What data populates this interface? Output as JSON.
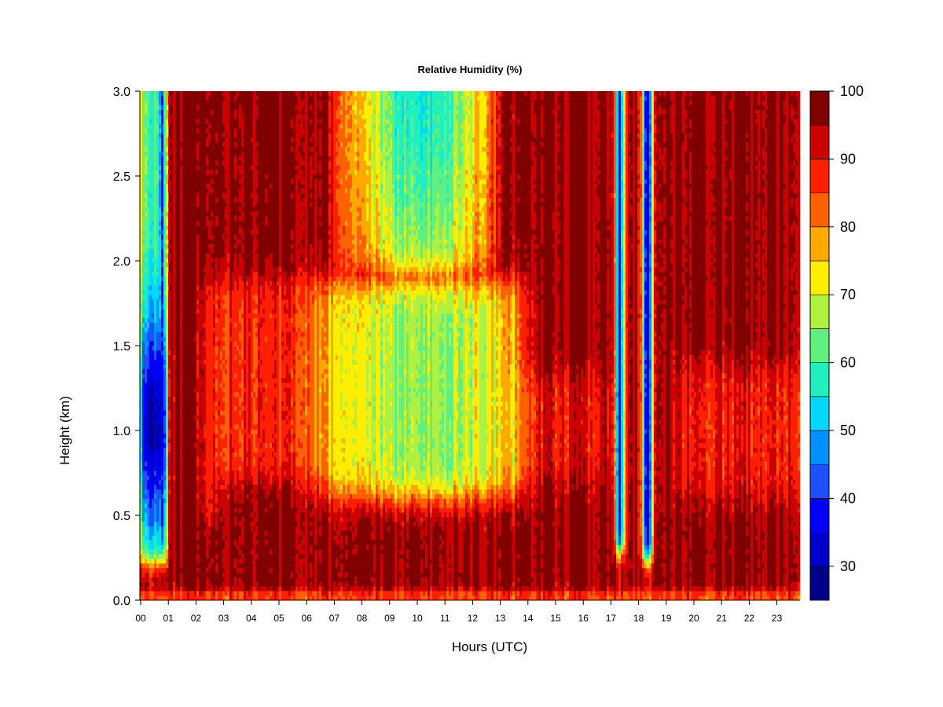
{
  "chart_data": {
    "type": "heatmap",
    "title": "Relative Humidity (%)",
    "xlabel": "Hours (UTC)",
    "ylabel": "Height (km)",
    "x_tick_labels": [
      "00",
      "01",
      "02",
      "03",
      "04",
      "05",
      "06",
      "07",
      "08",
      "09",
      "10",
      "11",
      "12",
      "13",
      "14",
      "15",
      "16",
      "17",
      "18",
      "19",
      "20",
      "21",
      "22",
      "23"
    ],
    "y_tick_labels": [
      "0.0",
      "0.5",
      "1.0",
      "1.5",
      "2.0",
      "2.5",
      "3.0"
    ],
    "xlim": [
      0,
      24
    ],
    "ylim": [
      0,
      3.0
    ],
    "colorbar": {
      "tick_labels": [
        "30",
        "40",
        "50",
        "60",
        "70",
        "80",
        "90",
        "100"
      ],
      "range": [
        25,
        100
      ],
      "levels": [
        25,
        30,
        35,
        40,
        45,
        50,
        55,
        60,
        65,
        70,
        75,
        80,
        85,
        90,
        95,
        100
      ],
      "colors": [
        "#00008b",
        "#0000cd",
        "#0000ff",
        "#1e50ff",
        "#0090ff",
        "#00d8ff",
        "#20f0c0",
        "#60f080",
        "#b0f040",
        "#ffee00",
        "#ffa800",
        "#ff6000",
        "#ff2000",
        "#cc0000",
        "#800000"
      ]
    },
    "features": [
      {
        "hour_start": 0.0,
        "hour_end": 1.0,
        "height_start": 0.2,
        "height_end": 3.0,
        "description": "dry band, min ~30% near 1.0-1.2 km at 00-01"
      },
      {
        "hour_start": 2.0,
        "hour_end": 3.0,
        "height_start": 0.5,
        "height_end": 1.9,
        "description": "90-95% band"
      },
      {
        "hour_start": 3.0,
        "hour_end": 6.5,
        "height_start": 0.7,
        "height_end": 1.9,
        "description": "85-95% layer"
      },
      {
        "hour_start": 6.5,
        "hour_end": 14.0,
        "height_start": 0.6,
        "height_end": 3.0,
        "description": "70-90% layer, min ~55-60% near 3.0 km at 10-11"
      },
      {
        "hour_start": 14.0,
        "hour_end": 17.0,
        "height_start": 0.7,
        "height_end": 1.3,
        "description": "90-95% layer"
      },
      {
        "hour_start": 17.2,
        "hour_end": 17.7,
        "height_start": 0.3,
        "height_end": 3.0,
        "description": "dry band, min ~40%"
      },
      {
        "hour_start": 18.2,
        "hour_end": 18.8,
        "height_start": 0.25,
        "height_end": 3.0,
        "description": "dry band, min ~35%"
      },
      {
        "hour_start": 19.5,
        "hour_end": 24.0,
        "height_start": 0.6,
        "height_end": 1.4,
        "description": "90-95% layer"
      },
      {
        "hour_start": 0.0,
        "hour_end": 24.0,
        "height_start": 0.0,
        "height_end": 0.06,
        "description": "surface layer 80-95%"
      }
    ],
    "background_value": 97
  }
}
